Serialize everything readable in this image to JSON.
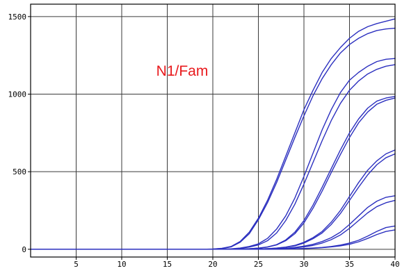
{
  "chart_data": {
    "type": "line",
    "title": "",
    "xlabel": "",
    "ylabel": "",
    "annotation": "N1/Fam",
    "xlim": [
      0,
      40
    ],
    "ylim": [
      -50,
      1580
    ],
    "x_ticks": [
      5,
      10,
      15,
      20,
      25,
      30,
      35,
      40
    ],
    "y_ticks": [
      0,
      500,
      1000,
      1500
    ],
    "grid": true,
    "legend": "none",
    "colors": {
      "series": "#2b2fbf",
      "grid": "#3a3a3a",
      "axis": "#000000",
      "annotation": "#e8191c",
      "background": "#ffffff"
    },
    "x": [
      0,
      2,
      4,
      6,
      8,
      10,
      12,
      14,
      16,
      18,
      19,
      20,
      21,
      22,
      23,
      24,
      25,
      26,
      27,
      28,
      29,
      30,
      31,
      32,
      33,
      34,
      35,
      36,
      37,
      38,
      39,
      40
    ],
    "series": [
      {
        "values": [
          0,
          0,
          0,
          0,
          0,
          0,
          0,
          0,
          0,
          0,
          0,
          2,
          6,
          18,
          50,
          110,
          200,
          315,
          450,
          600,
          750,
          900,
          1025,
          1140,
          1230,
          1300,
          1360,
          1405,
          1435,
          1455,
          1470,
          1485
        ]
      },
      {
        "values": [
          0,
          0,
          0,
          0,
          0,
          0,
          0,
          0,
          0,
          0,
          0,
          1,
          5,
          15,
          45,
          100,
          190,
          300,
          430,
          575,
          720,
          860,
          990,
          1100,
          1190,
          1265,
          1320,
          1360,
          1390,
          1410,
          1420,
          1425
        ]
      },
      {
        "values": [
          0,
          0,
          0,
          0,
          0,
          0,
          0,
          0,
          0,
          0,
          0,
          0,
          1,
          3,
          8,
          18,
          35,
          70,
          130,
          215,
          330,
          470,
          620,
          770,
          900,
          1010,
          1090,
          1140,
          1180,
          1210,
          1225,
          1230
        ]
      },
      {
        "values": [
          0,
          0,
          0,
          0,
          0,
          0,
          0,
          0,
          0,
          0,
          0,
          0,
          1,
          2,
          6,
          14,
          28,
          55,
          105,
          185,
          290,
          420,
          560,
          700,
          830,
          940,
          1025,
          1085,
          1130,
          1160,
          1180,
          1190
        ]
      },
      {
        "values": [
          0,
          0,
          0,
          0,
          0,
          0,
          0,
          0,
          0,
          0,
          0,
          0,
          0,
          1,
          2,
          4,
          8,
          15,
          30,
          60,
          110,
          185,
          285,
          400,
          520,
          640,
          750,
          840,
          910,
          955,
          975,
          985
        ]
      },
      {
        "values": [
          0,
          0,
          0,
          0,
          0,
          0,
          0,
          0,
          0,
          0,
          0,
          0,
          0,
          1,
          2,
          3,
          7,
          14,
          28,
          55,
          100,
          170,
          265,
          375,
          495,
          610,
          720,
          815,
          885,
          935,
          960,
          975
        ]
      },
      {
        "values": [
          0,
          0,
          0,
          0,
          0,
          0,
          0,
          0,
          0,
          0,
          0,
          0,
          0,
          0,
          0,
          1,
          2,
          4,
          8,
          14,
          25,
          45,
          75,
          115,
          175,
          250,
          340,
          430,
          510,
          570,
          615,
          640
        ]
      },
      {
        "values": [
          0,
          0,
          0,
          0,
          0,
          0,
          0,
          0,
          0,
          0,
          0,
          0,
          0,
          0,
          0,
          1,
          2,
          4,
          7,
          13,
          22,
          40,
          68,
          105,
          160,
          230,
          315,
          400,
          480,
          545,
          590,
          615
        ]
      },
      {
        "values": [
          0,
          0,
          0,
          0,
          0,
          0,
          0,
          0,
          0,
          0,
          0,
          0,
          0,
          0,
          0,
          0,
          1,
          2,
          4,
          7,
          12,
          20,
          32,
          50,
          75,
          110,
          160,
          215,
          270,
          310,
          335,
          345
        ]
      },
      {
        "values": [
          0,
          0,
          0,
          0,
          0,
          0,
          0,
          0,
          0,
          0,
          0,
          0,
          0,
          0,
          0,
          0,
          1,
          2,
          3,
          5,
          9,
          15,
          25,
          40,
          62,
          92,
          135,
          185,
          235,
          275,
          300,
          315
        ]
      },
      {
        "values": [
          0,
          0,
          0,
          0,
          0,
          0,
          0,
          0,
          0,
          0,
          0,
          0,
          0,
          0,
          0,
          0,
          0,
          0,
          1,
          2,
          3,
          5,
          8,
          12,
          18,
          27,
          40,
          58,
          85,
          115,
          140,
          150
        ]
      },
      {
        "values": [
          0,
          0,
          0,
          0,
          0,
          0,
          0,
          0,
          0,
          0,
          0,
          0,
          0,
          0,
          0,
          0,
          0,
          0,
          1,
          2,
          3,
          4,
          7,
          10,
          15,
          22,
          32,
          48,
          70,
          95,
          115,
          125
        ]
      }
    ]
  }
}
